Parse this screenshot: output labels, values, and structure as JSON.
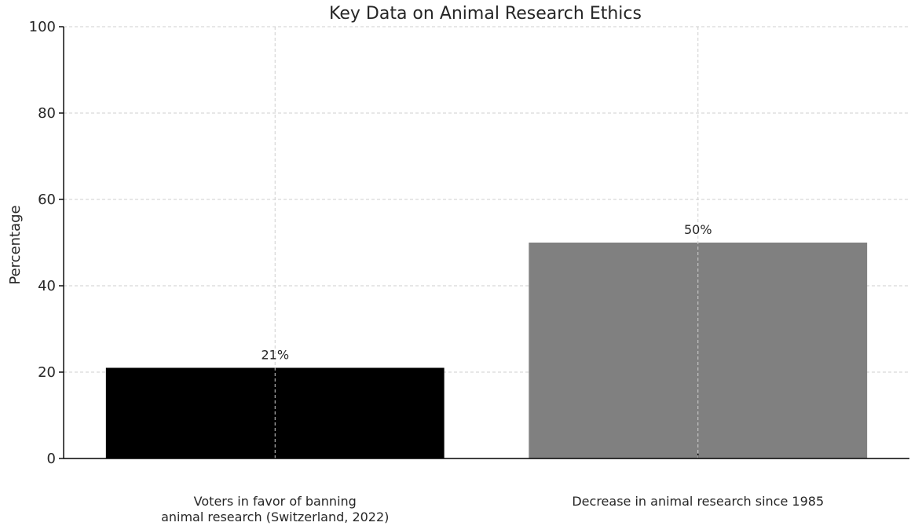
{
  "chart_data": {
    "type": "bar",
    "title": "Key Data on Animal Research Ethics",
    "xlabel": "",
    "ylabel": "Percentage",
    "ylim": [
      0,
      100
    ],
    "yticks": [
      0,
      20,
      40,
      60,
      80,
      100
    ],
    "grid": true,
    "categories": [
      "Voters in favor of banning\nanimal research (Switzerland, 2022)",
      "Decrease in animal research since 1985"
    ],
    "values": [
      21,
      50
    ],
    "data_labels": [
      "21%",
      "50%"
    ],
    "colors": [
      "#000000",
      "#808080"
    ]
  }
}
